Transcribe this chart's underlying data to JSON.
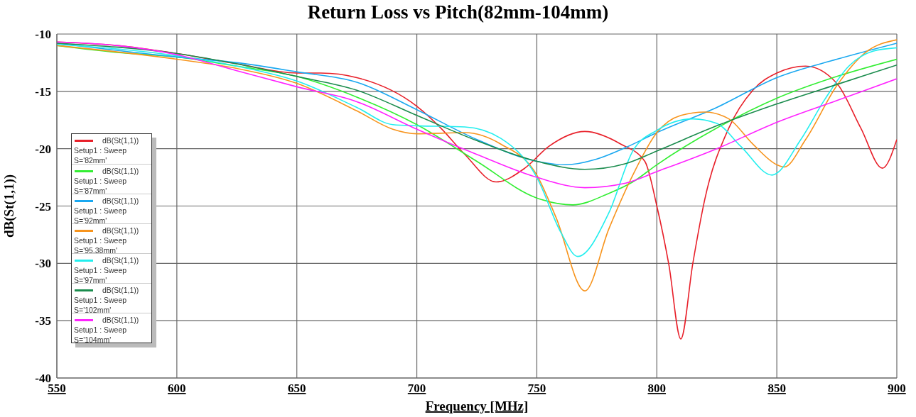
{
  "chart_data": {
    "type": "line",
    "title": "Return Loss vs Pitch(82mm-104mm)",
    "xlabel": "Frequency [MHz]",
    "ylabel": "dB(St(1,1))",
    "xlim": [
      550,
      900
    ],
    "xticks": [
      550,
      600,
      650,
      700,
      750,
      800,
      850,
      900
    ],
    "ylim": [
      -40,
      -10
    ],
    "yticks": [
      -40,
      -35,
      -30,
      -25,
      -20,
      -15,
      -10
    ],
    "grid": true,
    "legend": "left",
    "marker": "none",
    "line_style": "solid",
    "series": [
      {
        "name": "dB(St(1,1))\nSetup1 : Sweep\nS='82mm'",
        "color": "#e8202a",
        "x": [
          550,
          575,
          600,
          625,
          650,
          660,
          675,
          700,
          710,
          720,
          733,
          745,
          755,
          770,
          785,
          795,
          800,
          805,
          810,
          815,
          820,
          830,
          840,
          850,
          862,
          875,
          885,
          894,
          900
        ],
        "values": [
          -10.7,
          -11.0,
          -11.7,
          -12.6,
          -13.4,
          -13.4,
          -13.8,
          -16.3,
          -18.2,
          -20.5,
          -22.9,
          -21.7,
          -19.8,
          -18.5,
          -19.6,
          -21.1,
          -25.0,
          -30.1,
          -36.6,
          -30.0,
          -24.4,
          -18.2,
          -14.9,
          -13.4,
          -12.8,
          -14.3,
          -18.2,
          -21.7,
          -19.2
        ]
      },
      {
        "name": "dB(St(1,1))\nSetup1 : Sweep\nS='87mm'",
        "color": "#33ee33",
        "x": [
          550,
          575,
          600,
          625,
          650,
          675,
          700,
          725,
          750,
          765,
          780,
          790,
          800,
          825,
          850,
          875,
          900
        ],
        "values": [
          -11.0,
          -11.6,
          -12.0,
          -12.8,
          -13.7,
          -15.5,
          -17.9,
          -21.1,
          -24.3,
          -24.9,
          -23.9,
          -22.9,
          -21.4,
          -18.2,
          -15.6,
          -13.7,
          -12.2
        ]
      },
      {
        "name": "dB(St(1,1))\nSetup1 : Sweep\nS='92mm'",
        "color": "#1aa8f0",
        "x": [
          550,
          600,
          625,
          650,
          675,
          700,
          725,
          750,
          762,
          775,
          787,
          800,
          825,
          850,
          875,
          900
        ],
        "values": [
          -10.8,
          -12.0,
          -12.5,
          -13.3,
          -14.2,
          -16.6,
          -19.2,
          -21.1,
          -21.4,
          -20.9,
          -19.9,
          -18.6,
          -16.4,
          -13.8,
          -12.2,
          -10.8
        ]
      },
      {
        "name": "dB(St(1,1))\nSetup1 : Sweep\nS='95.38mm'",
        "color": "#f7941d",
        "x": [
          550,
          600,
          625,
          650,
          675,
          690,
          700,
          720,
          735,
          750,
          758,
          770,
          780,
          790,
          800,
          810,
          820,
          830,
          840,
          850,
          853,
          862,
          875,
          887,
          900
        ],
        "values": [
          -11.0,
          -12.2,
          -13.0,
          -14.3,
          -16.7,
          -18.3,
          -18.7,
          -18.6,
          -19.6,
          -22.3,
          -26.0,
          -32.4,
          -27.0,
          -22.3,
          -18.6,
          -17.1,
          -16.8,
          -17.4,
          -19.6,
          -21.4,
          -21.6,
          -19.2,
          -14.5,
          -11.6,
          -10.5
        ]
      },
      {
        "name": "dB(St(1,1))\nSetup1 : Sweep\nS='97mm'",
        "color": "#22eeee",
        "x": [
          550,
          600,
          625,
          650,
          675,
          690,
          700,
          720,
          735,
          750,
          760,
          767,
          780,
          790,
          800,
          815,
          825,
          835,
          848,
          860,
          870,
          880,
          890,
          900
        ],
        "values": [
          -10.9,
          -11.9,
          -12.8,
          -14.1,
          -16.4,
          -17.9,
          -18.0,
          -18.1,
          -19.1,
          -22.5,
          -27.3,
          -29.4,
          -25.6,
          -20.2,
          -18.4,
          -17.4,
          -17.8,
          -19.8,
          -22.3,
          -19.2,
          -15.7,
          -12.8,
          -11.5,
          -11.2
        ]
      },
      {
        "name": "dB(St(1,1))\nSetup1 : Sweep\nS='102mm'",
        "color": "#1a8c4d",
        "x": [
          550,
          600,
          625,
          650,
          675,
          700,
          725,
          750,
          770,
          787,
          800,
          825,
          850,
          875,
          900
        ],
        "values": [
          -10.8,
          -11.7,
          -12.6,
          -13.7,
          -14.9,
          -17.1,
          -19.3,
          -21.1,
          -21.8,
          -21.3,
          -20.2,
          -18.0,
          -16.1,
          -14.4,
          -12.7
        ]
      },
      {
        "name": "dB(St(1,1))\nSetup1 : Sweep\nS='104mm'",
        "color": "#ff22ff",
        "x": [
          550,
          575,
          600,
          625,
          650,
          675,
          700,
          725,
          750,
          770,
          787,
          800,
          825,
          850,
          875,
          900
        ],
        "values": [
          -10.7,
          -11.0,
          -11.8,
          -13.2,
          -14.6,
          -15.9,
          -18.3,
          -20.5,
          -22.5,
          -23.4,
          -23.0,
          -22.0,
          -20.0,
          -17.7,
          -15.8,
          -13.9
        ]
      }
    ]
  }
}
